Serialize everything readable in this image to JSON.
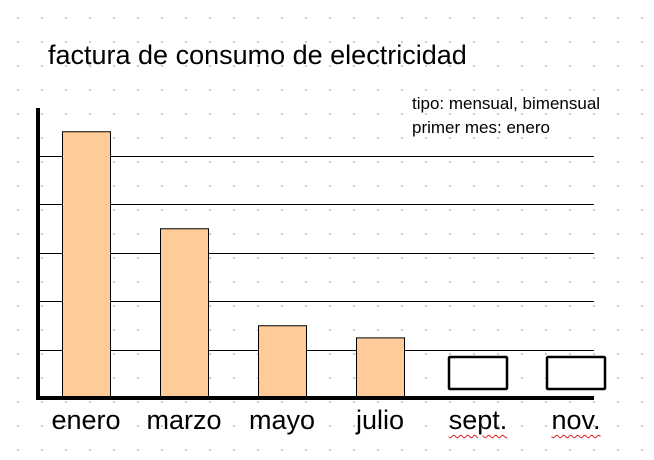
{
  "chart_data": {
    "type": "bar",
    "title": "factura de consumo de electricidad",
    "annotations": [
      "tipo: mensual, bimensual",
      "primer mes: enero"
    ],
    "categories": [
      "enero",
      "marzo",
      "mayo",
      "julio",
      "sept.",
      "nov."
    ],
    "values": [
      5.5,
      3.5,
      1.5,
      1.25,
      null,
      null
    ],
    "empty_categories": [
      "sept.",
      "nov."
    ],
    "ylim": [
      0,
      6
    ],
    "grid": true,
    "colors": {
      "bar_fill": "#FFCC99",
      "bar_stroke": "#000000",
      "grid": "#000000",
      "background": "#FFFFFF"
    }
  }
}
